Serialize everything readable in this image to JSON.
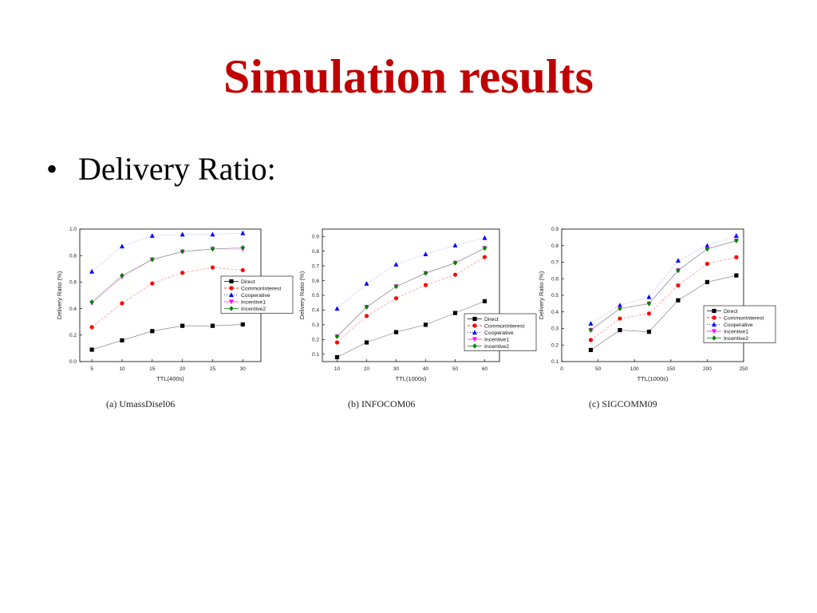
{
  "slide": {
    "title": "Simulation results",
    "bullet": "Delivery Ratio:"
  },
  "colors": {
    "title": "#c00000",
    "Direct": "#000000",
    "CommonInterest": "#ff0000",
    "Cooperative": "#0000ff",
    "Incentive1": "#ff00ff",
    "Incentive2": "#008000"
  },
  "chart_data": [
    {
      "type": "line",
      "caption": "(a) UmassDisel06",
      "xlabel": "TTL(400s)",
      "ylabel": "Delivery Ratio (%)",
      "xlim": [
        3,
        33
      ],
      "ylim": [
        0.0,
        1.0
      ],
      "xticks": [
        5,
        10,
        15,
        20,
        25,
        30
      ],
      "yticks": [
        0.0,
        0.2,
        0.4,
        0.6,
        0.8,
        1.0
      ],
      "ytick_labels": [
        "0.0",
        "0.2",
        "0.4",
        "0.6",
        "0.8",
        "1.0"
      ],
      "legend": "center-right",
      "x": [
        5,
        10,
        15,
        20,
        25,
        30
      ],
      "series": [
        {
          "name": "Direct",
          "marker": "square",
          "dash": "solid",
          "values": [
            0.09,
            0.16,
            0.23,
            0.27,
            0.27,
            0.28
          ]
        },
        {
          "name": "CommonInterest",
          "marker": "circle",
          "dash": "dash",
          "values": [
            0.26,
            0.44,
            0.59,
            0.67,
            0.71,
            0.69
          ]
        },
        {
          "name": "Cooperative",
          "marker": "triangle-up",
          "dash": "dashdot",
          "values": [
            0.68,
            0.87,
            0.95,
            0.96,
            0.96,
            0.97
          ]
        },
        {
          "name": "Incentive1",
          "marker": "triangle-down",
          "dash": "solid",
          "values": [
            0.44,
            0.64,
            0.77,
            0.83,
            0.85,
            0.85
          ]
        },
        {
          "name": "Incentive2",
          "marker": "diamond",
          "dash": "solid",
          "values": [
            0.45,
            0.65,
            0.77,
            0.83,
            0.85,
            0.86
          ]
        }
      ]
    },
    {
      "type": "line",
      "caption": "(b) INFOCOM06",
      "xlabel": "TTL(1000s)",
      "ylabel": "Delivery Ratio (%)",
      "xlim": [
        5,
        65
      ],
      "ylim": [
        0.05,
        0.95
      ],
      "xticks": [
        10,
        20,
        30,
        40,
        50,
        60
      ],
      "yticks": [
        0.1,
        0.2,
        0.3,
        0.4,
        0.5,
        0.6,
        0.7,
        0.8,
        0.9
      ],
      "ytick_labels": [
        "0.1",
        "0.2",
        "0.3",
        "0.4",
        "0.5",
        "0.6",
        "0.7",
        "0.8",
        "0.9"
      ],
      "legend": "bottom-right",
      "x": [
        10,
        20,
        30,
        40,
        50,
        60
      ],
      "series": [
        {
          "name": "Direct",
          "marker": "square",
          "dash": "solid",
          "values": [
            0.08,
            0.18,
            0.25,
            0.3,
            0.38,
            0.46
          ]
        },
        {
          "name": "CommonInterest",
          "marker": "circle",
          "dash": "dash",
          "values": [
            0.18,
            0.36,
            0.48,
            0.57,
            0.64,
            0.76
          ]
        },
        {
          "name": "Cooperative",
          "marker": "triangle-up",
          "dash": "dashdot",
          "values": [
            0.41,
            0.58,
            0.71,
            0.78,
            0.84,
            0.89
          ]
        },
        {
          "name": "Incentive1",
          "marker": "triangle-down",
          "dash": "solid",
          "values": [
            0.22,
            0.42,
            0.56,
            0.65,
            0.72,
            0.82
          ]
        },
        {
          "name": "Incentive2",
          "marker": "diamond",
          "dash": "solid",
          "values": [
            0.22,
            0.42,
            0.56,
            0.65,
            0.72,
            0.82
          ]
        }
      ]
    },
    {
      "type": "line",
      "caption": "(c) SIGCOMM09",
      "xlabel": "TTL(1000s)",
      "ylabel": "Delivery Ratio (%)",
      "xlim": [
        0,
        250
      ],
      "ylim": [
        0.1,
        0.9
      ],
      "xticks": [
        0,
        50,
        100,
        150,
        200,
        250
      ],
      "yticks": [
        0.1,
        0.2,
        0.3,
        0.4,
        0.5,
        0.6,
        0.7,
        0.8,
        0.9
      ],
      "ytick_labels": [
        "0.1",
        "0.2",
        "0.3",
        "0.4",
        "0.5",
        "0.6",
        "0.7",
        "0.8",
        "0.9"
      ],
      "legend": "center-right",
      "x": [
        40,
        80,
        120,
        160,
        200,
        240
      ],
      "series": [
        {
          "name": "Direct",
          "marker": "square",
          "dash": "solid",
          "values": [
            0.17,
            0.29,
            0.28,
            0.47,
            0.58,
            0.62
          ]
        },
        {
          "name": "CommonInterest",
          "marker": "circle",
          "dash": "dash",
          "values": [
            0.23,
            0.36,
            0.39,
            0.56,
            0.69,
            0.73
          ]
        },
        {
          "name": "Cooperative",
          "marker": "triangle-up",
          "dash": "dashdot",
          "values": [
            0.33,
            0.44,
            0.49,
            0.71,
            0.8,
            0.86
          ]
        },
        {
          "name": "Incentive1",
          "marker": "triangle-down",
          "dash": "solid",
          "values": [
            0.29,
            0.42,
            0.45,
            0.65,
            0.78,
            0.83
          ]
        },
        {
          "name": "Incentive2",
          "marker": "diamond",
          "dash": "solid",
          "values": [
            0.29,
            0.42,
            0.45,
            0.65,
            0.78,
            0.83
          ]
        }
      ]
    }
  ]
}
